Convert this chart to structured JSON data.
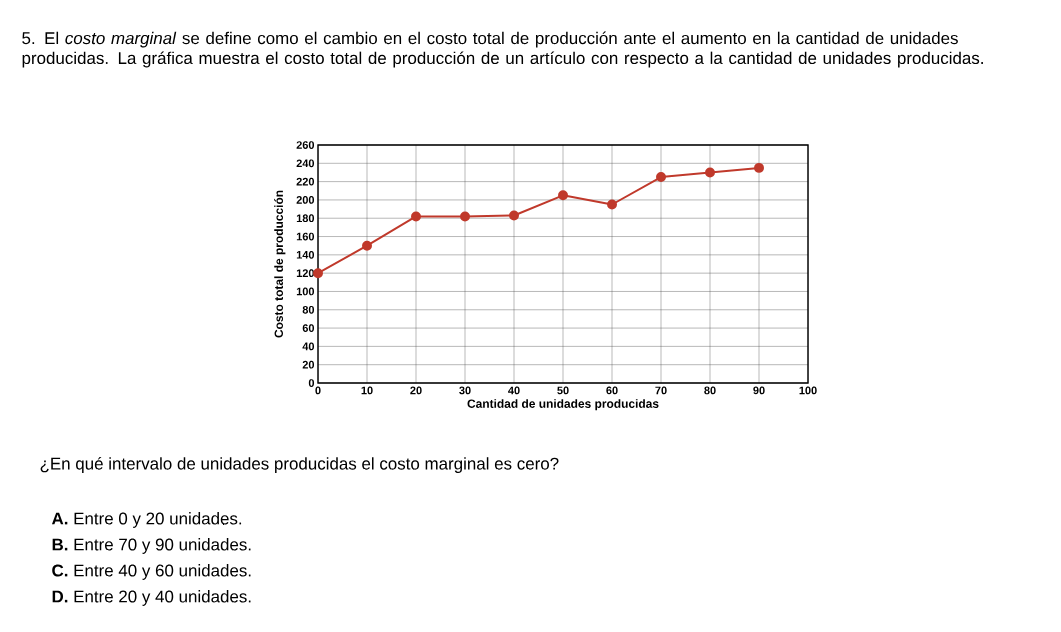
{
  "chart_data": {
    "type": "line",
    "title": "5. El *costo marginal* se define como el cambio en el costo total de producción ante el aumento en la cantidad de unidades producidas. La gráfica muestra el costo total de producción de un artículo con respecto a la cantidad de unidades producidas.",
    "xlabel": "Cantidad de unidades producidas",
    "ylabel": "Costo total de producción",
    "x": [
      0,
      10,
      20,
      30,
      40,
      50,
      60,
      70,
      80,
      90
    ],
    "series": [
      {
        "color": "#c0392b",
        "values": [
          120,
          150,
          182,
          182,
          183,
          205,
          195,
          225,
          230,
          235
        ]
      }
    ],
    "xlim": [
      0,
      100
    ],
    "xticks": [
      0,
      10,
      20,
      30,
      40,
      50,
      60,
      70,
      80,
      90,
      100
    ],
    "ylim": [
      0,
      260
    ],
    "yticks": [
      0,
      20,
      40,
      60,
      80,
      100,
      120,
      140,
      160,
      180,
      200,
      220,
      240,
      260
    ],
    "grid": true,
    "marker": "circle",
    "line_style": "solid",
    "annotations": [
      "¿En qué intervalo de unidades producidas el costo marginal es cero?",
      "**A.** Entre 0 y 20 unidades.",
      "**B.** Entre 70 y 90 unidades.",
      "**C.** Entre 40 y 60 unidades.",
      "**D.** Entre 20 y 40 unidades."
    ]
  }
}
